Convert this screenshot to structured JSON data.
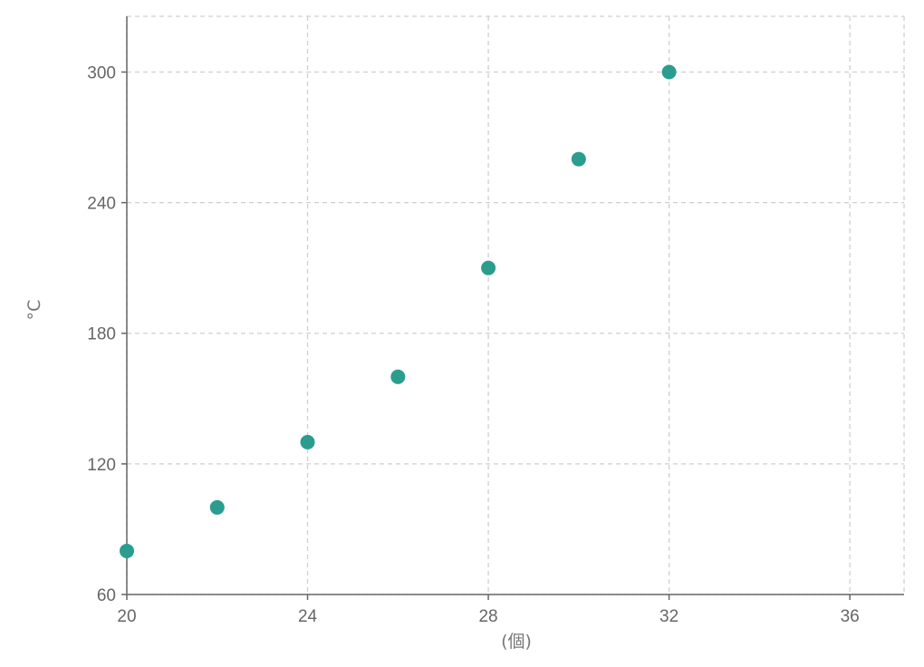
{
  "chart_data": {
    "type": "scatter",
    "title": "",
    "xlabel": "(個)",
    "ylabel": "°C",
    "xlim": [
      20,
      37.2
    ],
    "ylim": [
      60,
      325.6
    ],
    "x_ticks": [
      20,
      24,
      28,
      32,
      36
    ],
    "y_ticks": [
      60,
      120,
      180,
      240,
      300
    ],
    "grid": true,
    "legend": "none",
    "series": [
      {
        "color": "#2a9d8f",
        "points": [
          {
            "x": 20,
            "y": 80
          },
          {
            "x": 22,
            "y": 100
          },
          {
            "x": 24,
            "y": 130
          },
          {
            "x": 26,
            "y": 160
          },
          {
            "x": 28,
            "y": 210
          },
          {
            "x": 30,
            "y": 260
          },
          {
            "x": 32,
            "y": 300
          }
        ]
      }
    ]
  }
}
